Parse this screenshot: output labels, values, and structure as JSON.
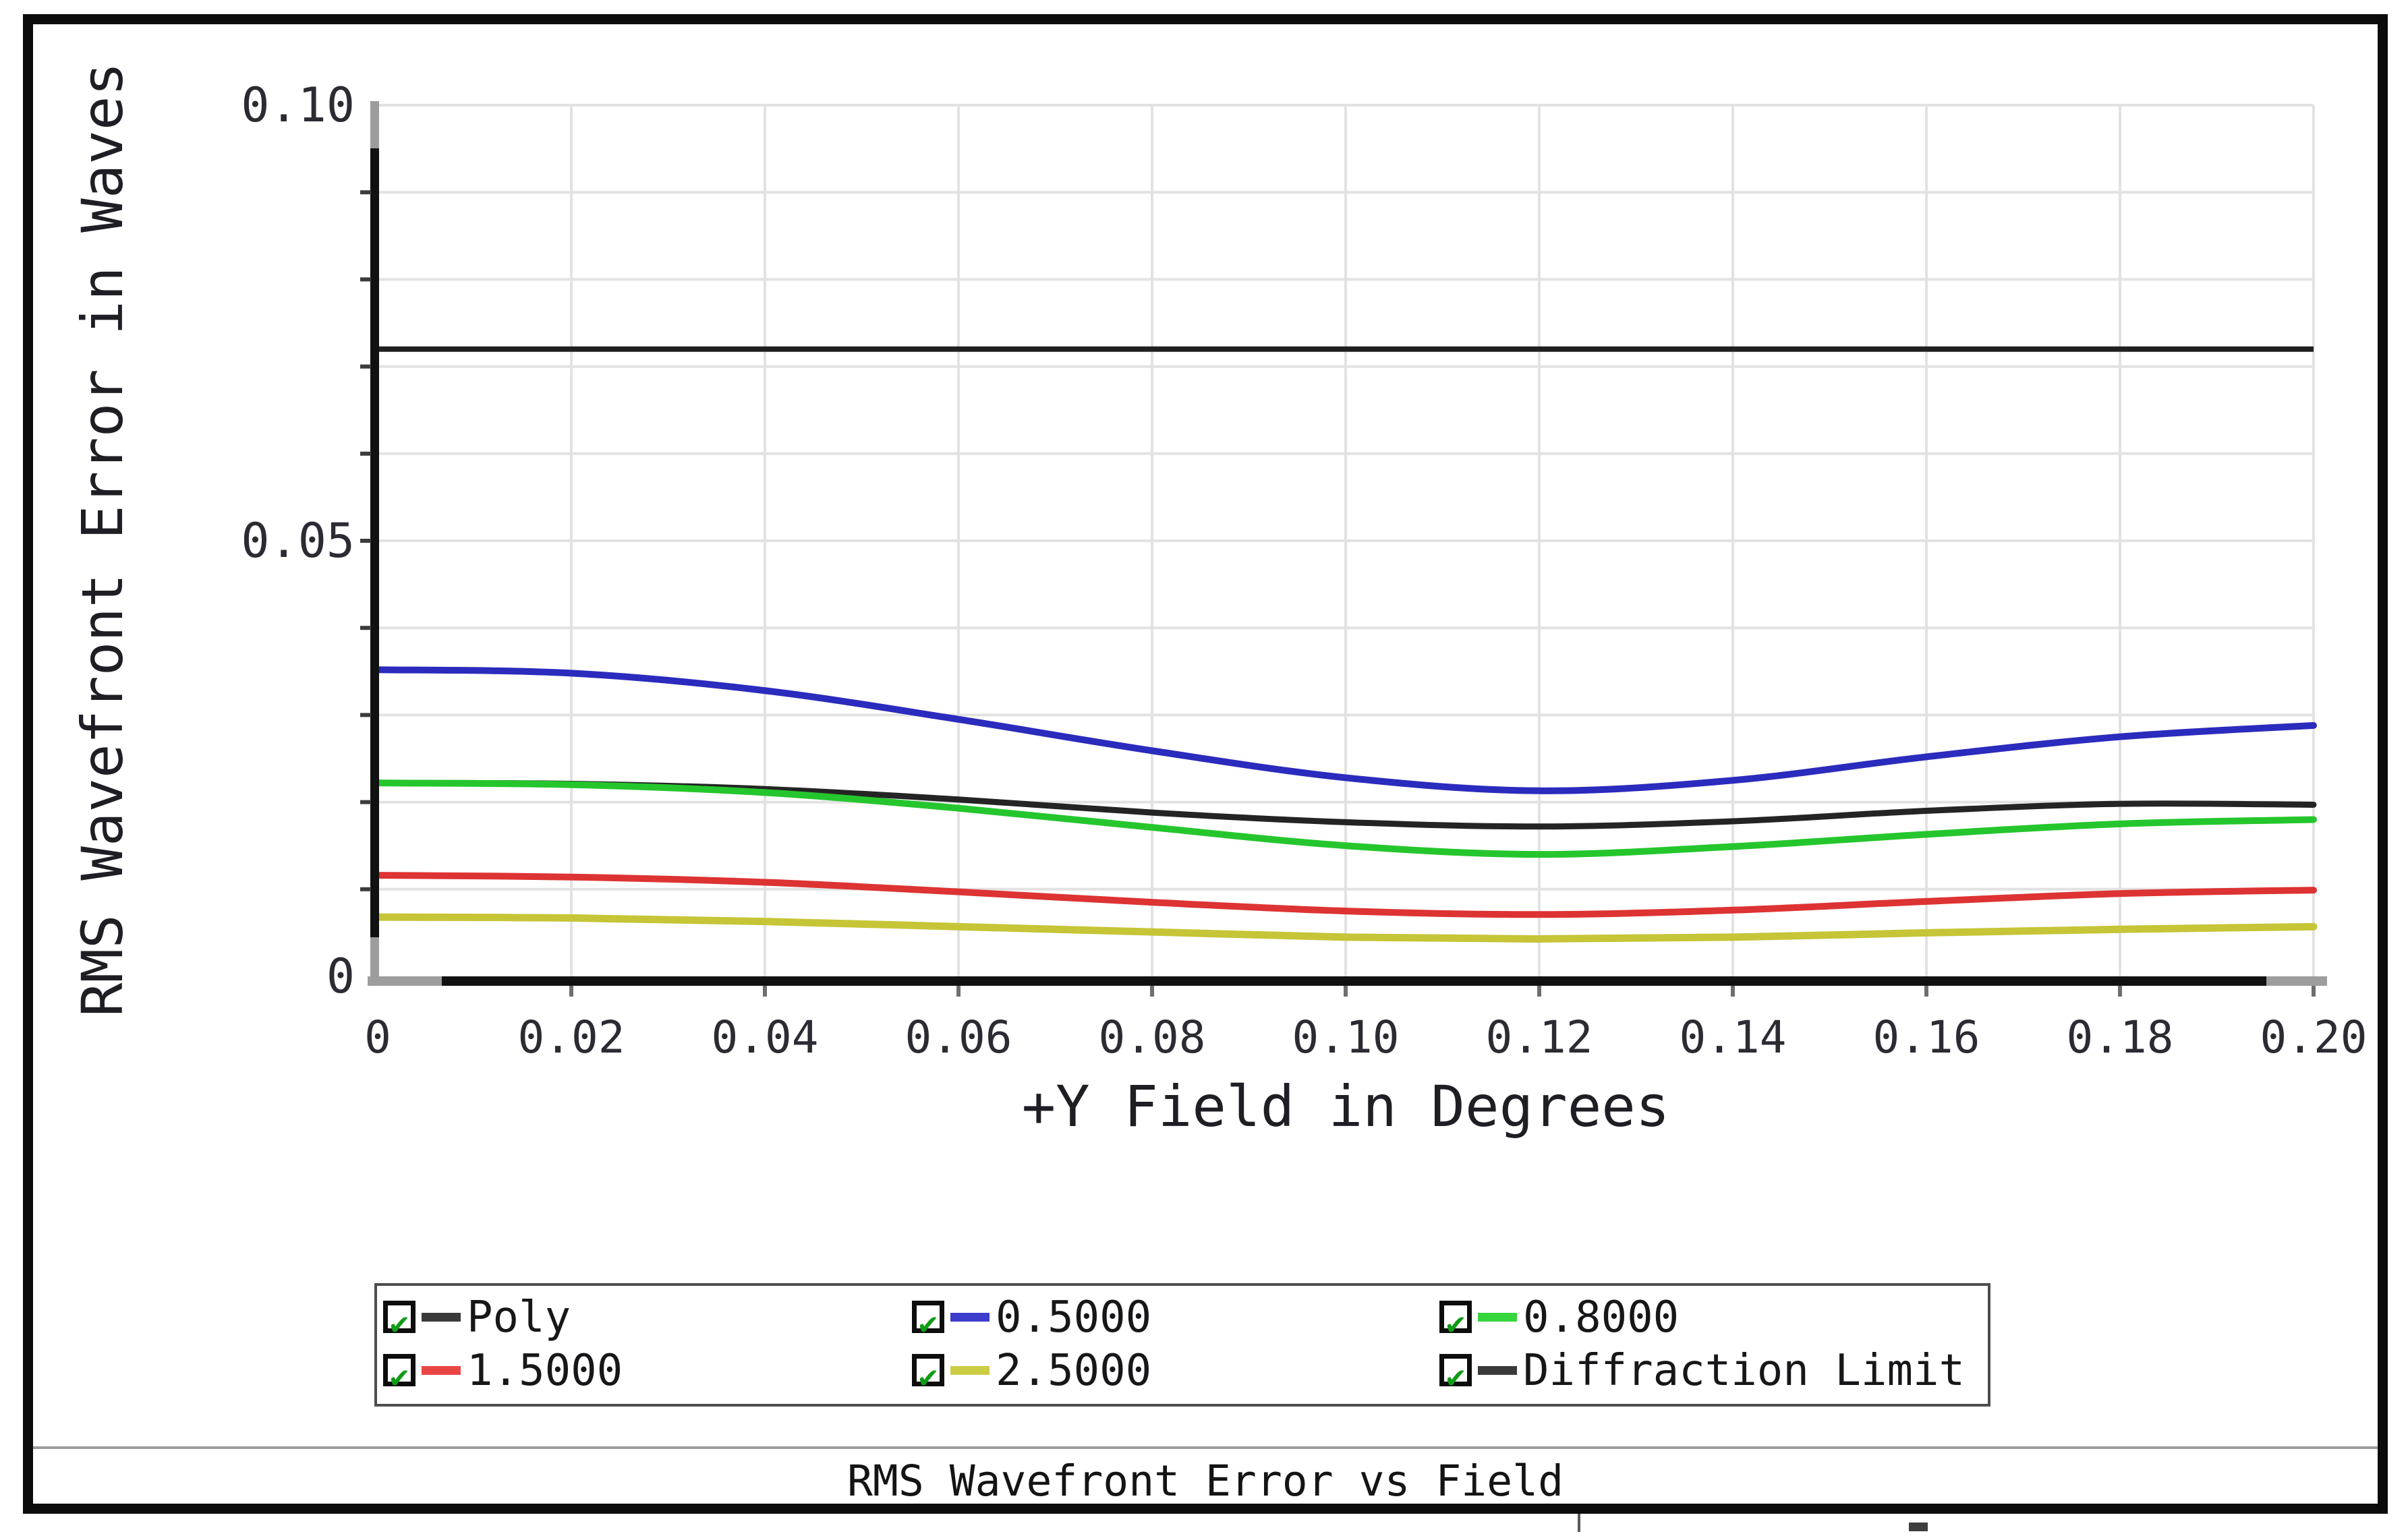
{
  "chart_data": {
    "type": "line",
    "title": "RMS Wavefront Error vs Field",
    "xlabel": "+Y Field in Degrees",
    "ylabel": "RMS Wavefront Error in Waves",
    "xlim": [
      0,
      0.2
    ],
    "ylim": [
      0,
      0.1
    ],
    "grid": "on",
    "legend_position": "bottom",
    "x": [
      0,
      0.02,
      0.04,
      0.06,
      0.08,
      0.1,
      0.12,
      0.14,
      0.16,
      0.18,
      0.2
    ],
    "series": [
      {
        "name": "Poly",
        "color": "#242424",
        "width": 9,
        "values": [
          0.0222,
          0.0221,
          0.0215,
          0.0203,
          0.0188,
          0.0177,
          0.0172,
          0.0178,
          0.019,
          0.0198,
          0.0197
        ]
      },
      {
        "name": "0.5000",
        "color": "#2b2bbd",
        "width": 10,
        "values": [
          0.0352,
          0.0348,
          0.0328,
          0.0295,
          0.0259,
          0.0228,
          0.0213,
          0.0225,
          0.0252,
          0.0275,
          0.0288
        ]
      },
      {
        "name": "0.8000",
        "color": "#25c62d",
        "width": 10,
        "values": [
          0.0222,
          0.022,
          0.0211,
          0.0193,
          0.0171,
          0.015,
          0.014,
          0.0149,
          0.0163,
          0.0175,
          0.018
        ]
      },
      {
        "name": "1.5000",
        "color": "#dd3333",
        "width": 10,
        "values": [
          0.0116,
          0.0114,
          0.0108,
          0.0097,
          0.0085,
          0.0075,
          0.0071,
          0.0076,
          0.0086,
          0.0095,
          0.0099
        ]
      },
      {
        "name": "2.5000",
        "color": "#c5c537",
        "width": 11,
        "values": [
          0.0068,
          0.0067,
          0.0063,
          0.0057,
          0.0051,
          0.0045,
          0.0043,
          0.0045,
          0.005,
          0.0054,
          0.0057
        ]
      }
    ],
    "reference_line": {
      "name": "Diffraction Limit",
      "value": 0.072,
      "color": "#1f1f1f",
      "width": 8
    },
    "xticks": {
      "values": [
        0,
        0.02,
        0.04,
        0.06,
        0.08,
        0.1,
        0.12,
        0.14,
        0.16,
        0.18,
        0.2
      ],
      "labels": [
        "0",
        "0.02",
        "0.04",
        "0.06",
        "0.08",
        "0.10",
        "0.12",
        "0.14",
        "0.16",
        "0.18",
        "0.20"
      ]
    },
    "yticks": {
      "values": [
        0,
        0.05,
        0.1
      ],
      "labels": [
        "0",
        "0.05",
        "0.10"
      ]
    },
    "minor_grid_step": {
      "x": 0.02,
      "y": 0.01
    }
  },
  "legend": {
    "items": [
      {
        "label": "Poly",
        "color": "#3a3a3a",
        "checked": true
      },
      {
        "label": "0.5000",
        "color": "#3c3ccd",
        "checked": true
      },
      {
        "label": "0.8000",
        "color": "#35d63c",
        "checked": true
      },
      {
        "label": "1.5000",
        "color": "#ea4545",
        "checked": true
      },
      {
        "label": "2.5000",
        "color": "#cccc44",
        "checked": true
      },
      {
        "label": "Diffraction Limit",
        "color": "#3a3a3a",
        "checked": true
      }
    ],
    "check_glyph": "✔"
  },
  "footer": {
    "title": "RMS Wavefront Error vs Field"
  },
  "colors": {
    "grid": "#e2e2e2",
    "axis_black": "#111111",
    "axis_gray": "#9d9d9d",
    "tick_mark": "#3c3c3c",
    "x_tick_mark": "#6e6e6e",
    "frame": "#0b0b0b",
    "separator": "#9c9c9c"
  }
}
